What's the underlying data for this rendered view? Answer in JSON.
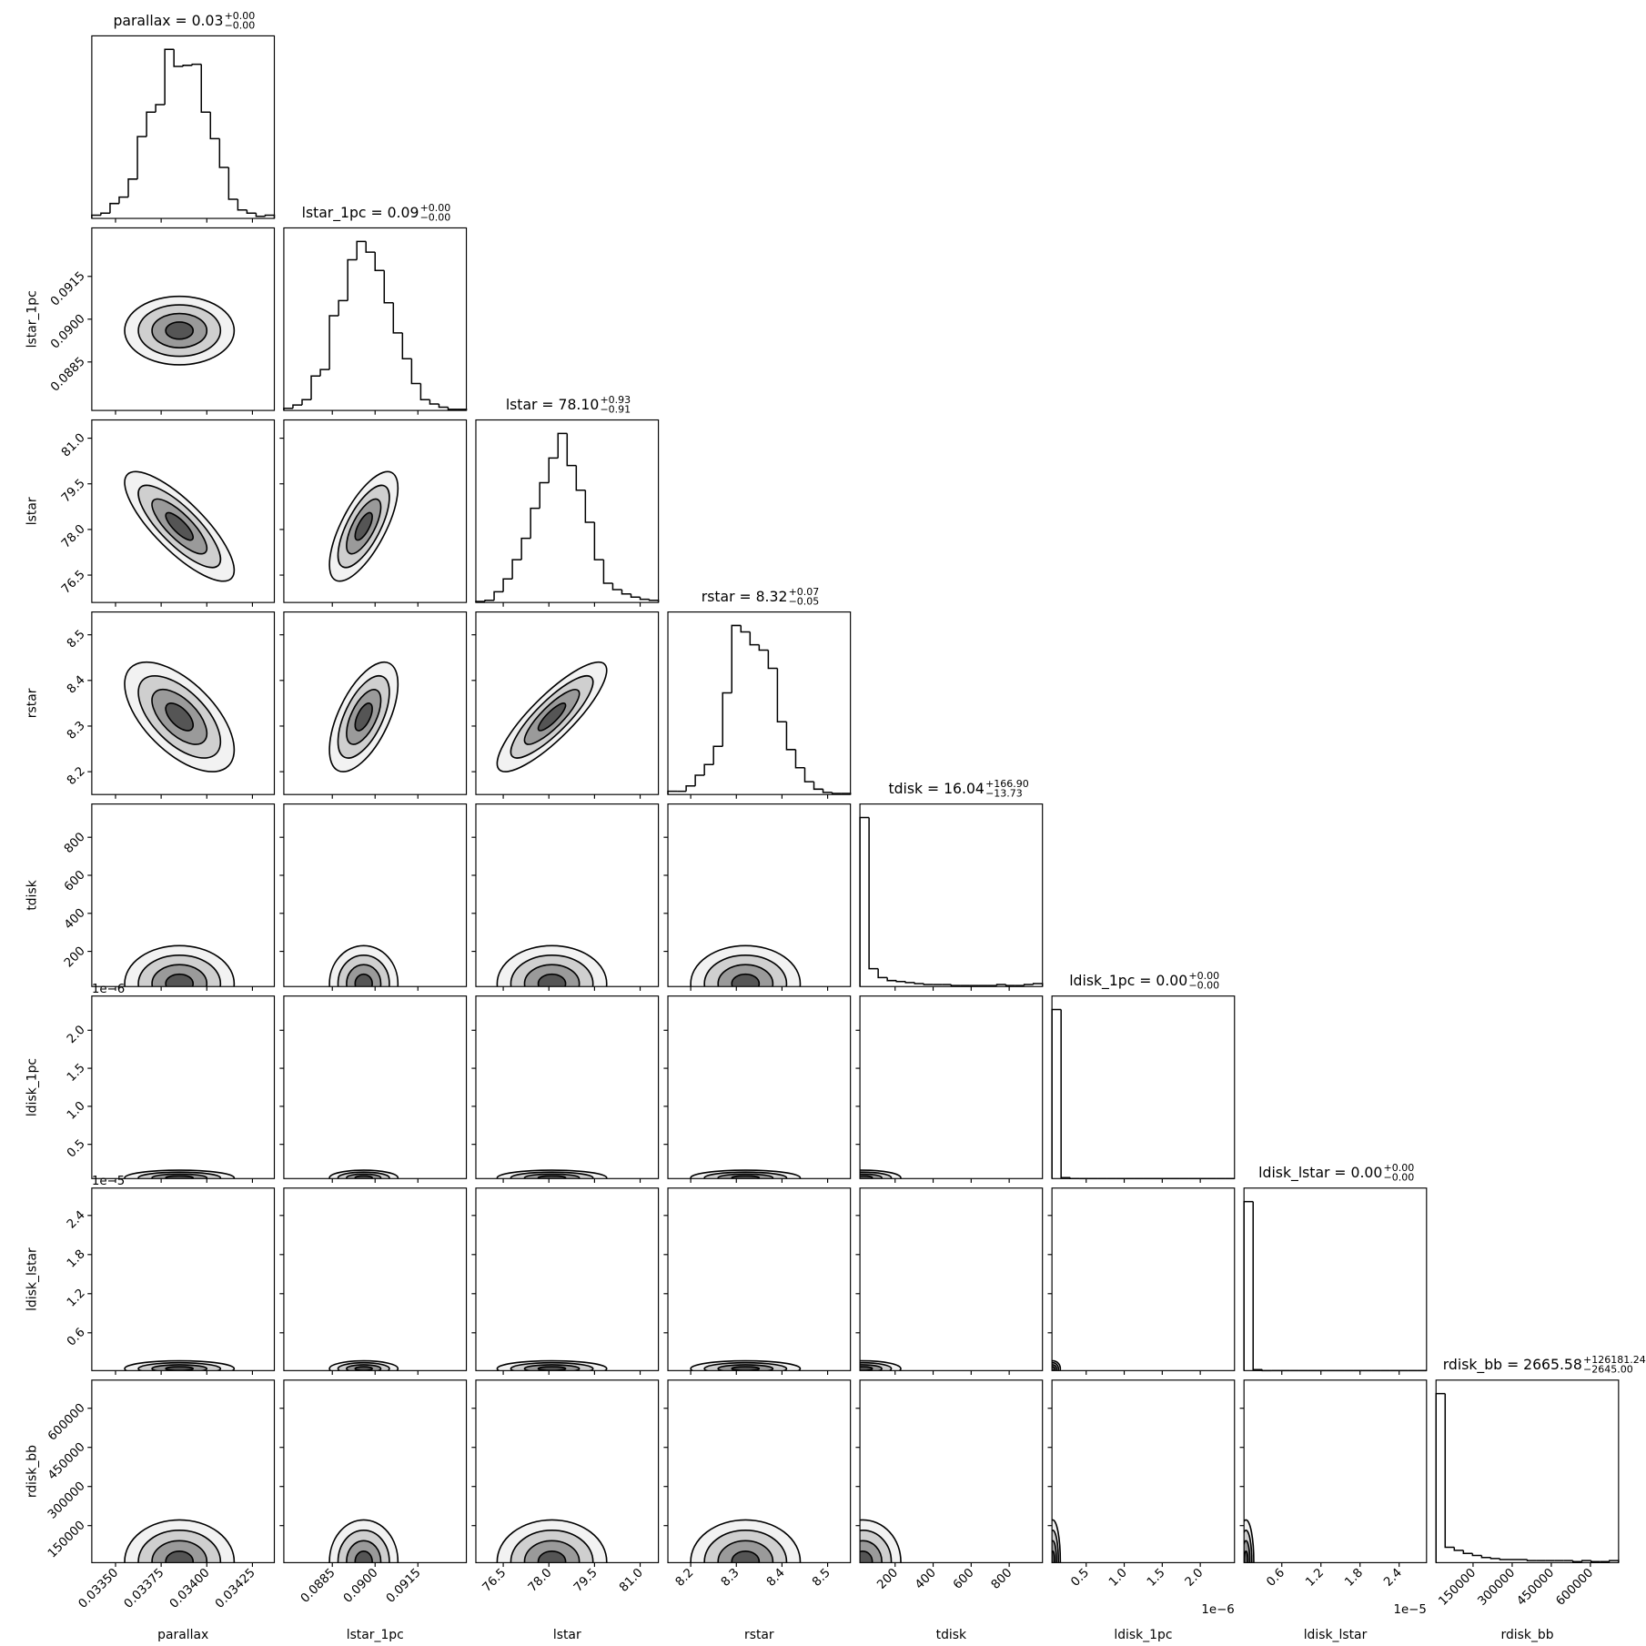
{
  "chart_data": {
    "type": "corner",
    "params": [
      {
        "label": "parallax",
        "title": {
          "text": "parallax = 0.03",
          "upper": "+0.00",
          "lower": "−0.00"
        },
        "xlim": [
          0.03337,
          0.03437
        ],
        "ticks": [
          {
            "value": 0.0335,
            "label": "0.03350"
          },
          0.03375,
          {
            "value": 0.034,
            "label": "0.03400"
          },
          0.03425
        ],
        "bins": [
          0.03337,
          0.03342,
          0.03347,
          0.03352,
          0.03357,
          0.03362,
          0.03367,
          0.03372,
          0.03377,
          0.03382,
          0.03387,
          0.03392,
          0.03397,
          0.03402,
          0.03407,
          0.03412,
          0.03417,
          0.03422,
          0.03427,
          0.03432,
          0.03437
        ],
        "counts": [
          3,
          5,
          14,
          20,
          37,
          77,
          100,
          107,
          159,
          143,
          144,
          145,
          100,
          75,
          48,
          18,
          8,
          5,
          2,
          3
        ],
        "center": 0.03385,
        "spread": 0.00015
      },
      {
        "label": "lstar_1pc",
        "title": {
          "text": "lstar_1pc = 0.09",
          "upper": "+0.00",
          "lower": "−0.00"
        },
        "xlim": [
          0.0868,
          0.0932
        ],
        "ticks": [
          0.0885,
          {
            "value": 0.09,
            "label": "0.0900"
          },
          0.0915
        ],
        "bins": [
          0.0868,
          0.08712,
          0.08744,
          0.08776,
          0.08808,
          0.0884,
          0.08872,
          0.08904,
          0.08936,
          0.08968,
          0.09,
          0.09032,
          0.09064,
          0.09096,
          0.09128,
          0.0916,
          0.09192,
          0.09224,
          0.09256,
          0.09288,
          0.0932
        ],
        "counts": [
          2,
          5,
          10,
          32,
          38,
          88,
          102,
          140,
          157,
          147,
          130,
          100,
          72,
          48,
          25,
          10,
          6,
          3,
          1,
          1
        ],
        "center": 0.0896,
        "spread": 0.0006
      },
      {
        "label": "lstar",
        "title": {
          "text": "lstar = 78.10",
          "upper": "+0.93",
          "lower": "−0.91"
        },
        "xlim": [
          75.6,
          81.6
        ],
        "ticks": [
          76.5,
          {
            "value": 78,
            "label": "78.0"
          },
          79.5,
          {
            "value": 81,
            "label": "81.0"
          }
        ],
        "bins": [
          75.6,
          75.9,
          76.2,
          76.5,
          76.8,
          77.1,
          77.4,
          77.7,
          78,
          78.3,
          78.6,
          78.9,
          79.2,
          79.5,
          79.8,
          80.1,
          80.4,
          80.7,
          81,
          81.3,
          81.6
        ],
        "counts": [
          1,
          2,
          10,
          22,
          40,
          60,
          88,
          112,
          135,
          158,
          128,
          105,
          75,
          40,
          18,
          12,
          8,
          5,
          3,
          2
        ],
        "center": 78.1,
        "spread": 0.9
      },
      {
        "label": "rstar",
        "title": {
          "text": "rstar = 8.32",
          "upper": "+0.07",
          "lower": "−0.05"
        },
        "xlim": [
          8.15,
          8.55
        ],
        "ticks": [
          8.2,
          8.3,
          8.4,
          8.5
        ],
        "bins": [
          8.15,
          8.17,
          8.19,
          8.21,
          8.23,
          8.25,
          8.27,
          8.29,
          8.31,
          8.33,
          8.35,
          8.37,
          8.39,
          8.41,
          8.43,
          8.45,
          8.47,
          8.49,
          8.51,
          8.53,
          8.55
        ],
        "counts": [
          3,
          3,
          8,
          18,
          28,
          45,
          95,
          158,
          152,
          140,
          135,
          118,
          68,
          42,
          25,
          12,
          5,
          2,
          1,
          1
        ],
        "center": 8.32,
        "spread": 0.06
      },
      {
        "label": "tdisk",
        "title": {
          "text": "tdisk = 16.04",
          "upper": "+166.90",
          "lower": "−13.73"
        },
        "xlim": [
          15,
          975
        ],
        "ticks": [
          200,
          400,
          600,
          800
        ],
        "bins": [
          15,
          63,
          111,
          159,
          207,
          255,
          303,
          351,
          399,
          447,
          495,
          543,
          591,
          639,
          687,
          735,
          783,
          831,
          879,
          927,
          975
        ],
        "counts": [
          170,
          18,
          9,
          6,
          5,
          4,
          3,
          2,
          2,
          2,
          1,
          1,
          1,
          1,
          1,
          2,
          1,
          1,
          2,
          3
        ],
        "center": 30,
        "spread": 100
      },
      {
        "label": "ldisk_1pc",
        "title": {
          "text": "ldisk_1pc = 0.00",
          "upper": "+0.00",
          "lower": "−0.00"
        },
        "offset_label": "1e−6",
        "xlim": [
          0.05,
          2.45
        ],
        "ticks": [
          0.5,
          {
            "value": 1,
            "label": "1.0"
          },
          1.5,
          {
            "value": 2,
            "label": "2.0"
          }
        ],
        "bins": [
          0.05,
          0.17,
          0.29,
          0.41,
          0.53,
          0.65,
          0.77,
          0.89,
          1.01,
          1.13,
          1.25,
          1.37,
          1.49,
          1.61,
          1.73,
          1.85,
          1.97,
          2.09,
          2.21,
          2.33,
          2.45
        ],
        "counts": [
          170,
          1,
          0,
          0,
          0,
          0,
          0,
          0,
          0,
          0,
          0,
          0,
          0,
          0,
          0,
          0,
          0,
          0,
          0,
          0
        ],
        "center": 0.06,
        "spread": 0.05
      },
      {
        "label": "ldisk_lstar",
        "title": {
          "text": "ldisk_lstar = 0.00",
          "upper": "+0.00",
          "lower": "−0.00"
        },
        "offset_label": "1e−5",
        "xlim": [
          0.02,
          2.82
        ],
        "ticks": [
          0.6,
          1.2,
          1.8,
          2.4
        ],
        "bins": [
          0.02,
          0.16,
          0.3,
          0.44,
          0.58,
          0.72,
          0.86,
          1,
          1.14,
          1.28,
          1.42,
          1.56,
          1.7,
          1.84,
          1.98,
          2.12,
          2.26,
          2.4,
          2.54,
          2.68,
          2.82
        ],
        "counts": [
          170,
          1,
          0,
          0,
          0,
          0,
          0,
          0,
          0,
          0,
          0,
          0,
          0,
          0,
          0,
          0,
          0,
          0,
          0,
          0
        ],
        "center": 0.05,
        "spread": 0.06
      },
      {
        "label": "rdisk_bb",
        "title": {
          "text": "rdisk_bb = 2665.58",
          "upper": "+126181.24",
          "lower": "−2645.00"
        },
        "xlim": [
          8000,
          708000
        ],
        "ticks": [
          150000,
          300000,
          450000,
          600000
        ],
        "bins": [
          8000,
          43000,
          78000,
          113000,
          148000,
          183000,
          218000,
          253000,
          288000,
          323000,
          358000,
          393000,
          428000,
          463000,
          498000,
          533000,
          568000,
          603000,
          638000,
          673000,
          708000
        ],
        "counts": [
          165,
          15,
          12,
          9,
          7,
          5,
          4,
          3,
          3,
          3,
          2,
          2,
          2,
          2,
          2,
          1,
          2,
          1,
          1,
          2
        ],
        "center": 12000,
        "spread": 80000
      }
    ],
    "correlations": [
      [
        0
      ],
      [
        -0.8,
        0.7
      ],
      [
        -0.6,
        0.6,
        0.85
      ],
      [
        0,
        0,
        0,
        0
      ],
      [
        0,
        0,
        0,
        0,
        0
      ],
      [
        0,
        0,
        0,
        0,
        0,
        0
      ],
      [
        0,
        0,
        0,
        0,
        0,
        0,
        0
      ]
    ]
  }
}
